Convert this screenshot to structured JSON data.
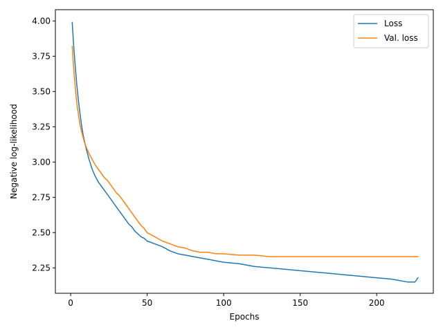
{
  "chart_data": {
    "type": "line",
    "title": "",
    "xlabel": "Epochs",
    "ylabel": "Negative log-likelihood",
    "xlim": [
      -10,
      237
    ],
    "ylim": [
      2.07,
      4.08
    ],
    "xticks": [
      0,
      50,
      100,
      150,
      200
    ],
    "yticks": [
      2.25,
      2.5,
      2.75,
      3.0,
      3.25,
      3.5,
      3.75,
      4.0
    ],
    "ytick_labels": [
      "2.25",
      "2.50",
      "2.75",
      "3.00",
      "3.25",
      "3.50",
      "3.75",
      "4.00"
    ],
    "grid": false,
    "legend_position": "top-right",
    "series": [
      {
        "name": "Loss",
        "color": "#1f77b4",
        "x": [
          1,
          2,
          3,
          4,
          5,
          6,
          7,
          8,
          9,
          10,
          12,
          14,
          16,
          18,
          20,
          22,
          24,
          26,
          28,
          30,
          32,
          34,
          36,
          38,
          40,
          42,
          44,
          46,
          48,
          50,
          55,
          60,
          65,
          70,
          75,
          80,
          85,
          90,
          95,
          100,
          110,
          120,
          130,
          140,
          150,
          160,
          170,
          180,
          190,
          200,
          210,
          215,
          220,
          225,
          227
        ],
        "y": [
          3.99,
          3.82,
          3.68,
          3.55,
          3.44,
          3.35,
          3.27,
          3.2,
          3.15,
          3.1,
          3.02,
          2.95,
          2.9,
          2.86,
          2.83,
          2.8,
          2.77,
          2.74,
          2.71,
          2.68,
          2.65,
          2.62,
          2.59,
          2.56,
          2.54,
          2.51,
          2.49,
          2.47,
          2.46,
          2.44,
          2.42,
          2.4,
          2.37,
          2.35,
          2.34,
          2.33,
          2.32,
          2.31,
          2.3,
          2.29,
          2.28,
          2.26,
          2.25,
          2.24,
          2.23,
          2.22,
          2.21,
          2.2,
          2.19,
          2.18,
          2.17,
          2.16,
          2.15,
          2.15,
          2.18
        ]
      },
      {
        "name": "Val. loss",
        "color": "#ff7f0e",
        "x": [
          1,
          2,
          3,
          4,
          5,
          6,
          7,
          8,
          9,
          10,
          12,
          14,
          16,
          18,
          20,
          22,
          24,
          26,
          28,
          30,
          32,
          34,
          36,
          38,
          40,
          42,
          44,
          46,
          48,
          50,
          55,
          60,
          65,
          70,
          75,
          80,
          85,
          90,
          95,
          100,
          110,
          120,
          130,
          140,
          150,
          160,
          170,
          180,
          190,
          200,
          210,
          220,
          227
        ],
        "y": [
          3.82,
          3.66,
          3.53,
          3.42,
          3.34,
          3.27,
          3.22,
          3.18,
          3.14,
          3.11,
          3.06,
          3.02,
          2.98,
          2.95,
          2.92,
          2.89,
          2.87,
          2.84,
          2.81,
          2.78,
          2.76,
          2.73,
          2.7,
          2.67,
          2.64,
          2.61,
          2.58,
          2.55,
          2.53,
          2.5,
          2.47,
          2.44,
          2.42,
          2.4,
          2.39,
          2.37,
          2.36,
          2.36,
          2.35,
          2.35,
          2.34,
          2.34,
          2.33,
          2.33,
          2.33,
          2.33,
          2.33,
          2.33,
          2.33,
          2.33,
          2.33,
          2.33,
          2.33
        ]
      }
    ]
  }
}
